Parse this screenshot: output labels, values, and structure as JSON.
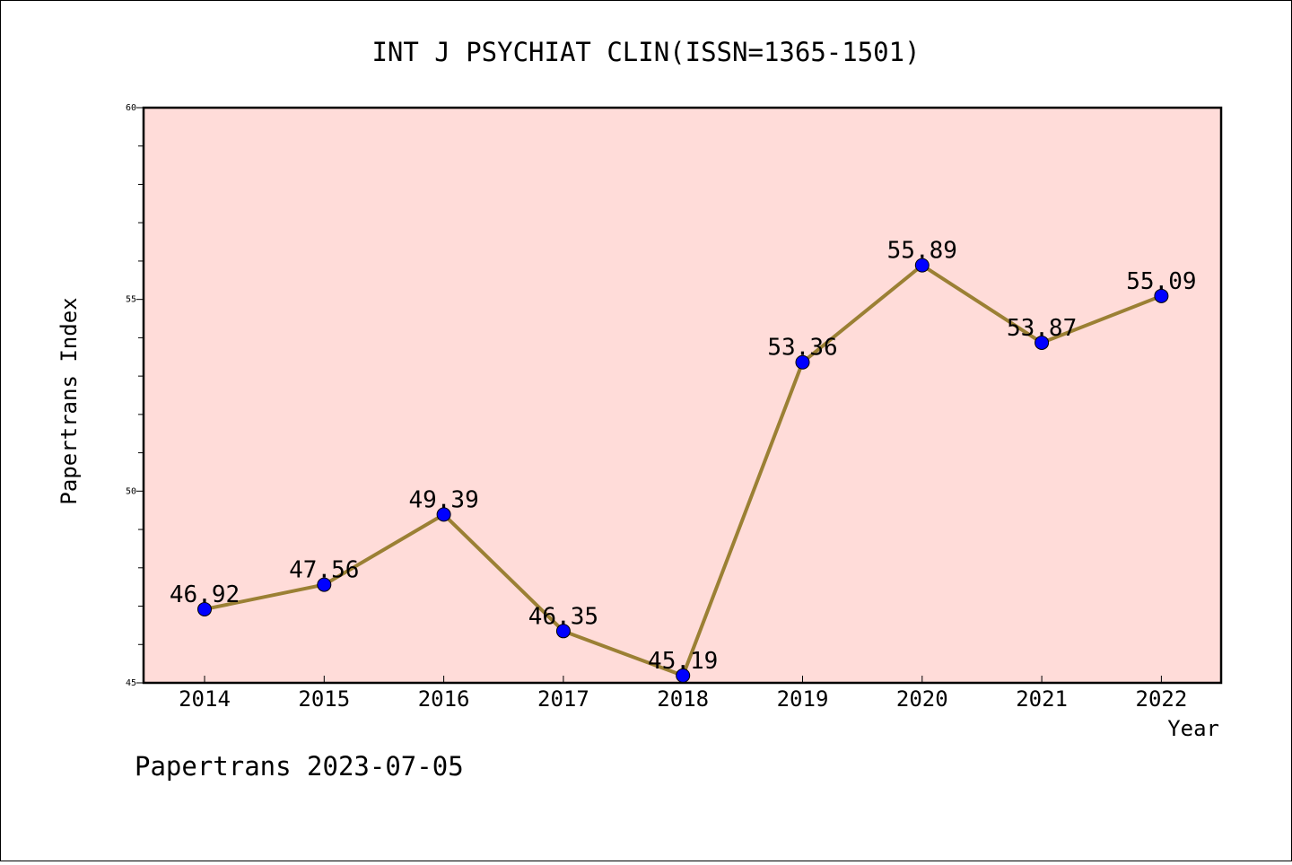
{
  "chart_data": {
    "type": "line",
    "title": "INT J PSYCHIAT CLIN(ISSN=1365-1501)",
    "xlabel": "Year",
    "ylabel": "Papertrans Index",
    "x": [
      "2014",
      "2015",
      "2016",
      "2017",
      "2018",
      "2019",
      "2020",
      "2021",
      "2022"
    ],
    "values": [
      46.92,
      47.56,
      49.39,
      46.35,
      45.19,
      53.36,
      55.89,
      53.87,
      55.09
    ],
    "data_labels": [
      "46.92",
      "47.56",
      "49.39",
      "46.35",
      "45.19",
      "53.36",
      "55.89",
      "53.87",
      "55.09"
    ],
    "ylim": [
      45,
      60
    ],
    "yticks": [
      "45",
      "50",
      "55",
      "60"
    ],
    "grid": false,
    "colors": {
      "plot_background": "#ffdcd9",
      "line": "#9b8034",
      "marker": "#0000ff"
    }
  },
  "footer": {
    "text": "Papertrans 2023-07-05"
  }
}
